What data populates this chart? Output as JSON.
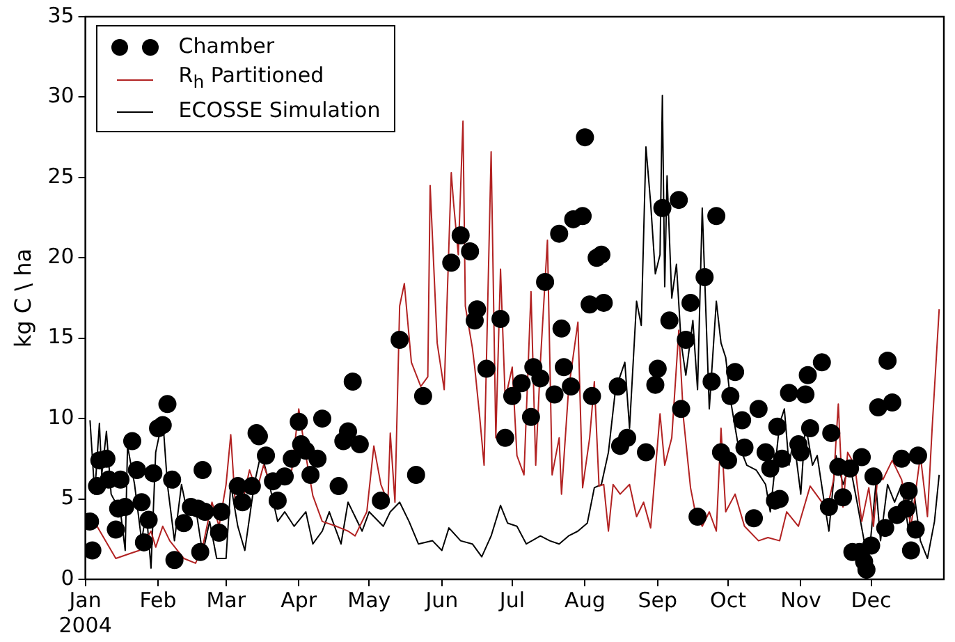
{
  "chart_data": {
    "type": "line",
    "ylabel": "kg C \\ ha",
    "xlim": [
      "2004-01-01",
      "2005-01-01"
    ],
    "ylim": [
      0,
      35
    ],
    "yticks": [
      0,
      5,
      10,
      15,
      20,
      25,
      30,
      35
    ],
    "xticks": [
      {
        "value": "2004-01-01",
        "label": "Jan\n2004"
      },
      {
        "value": "2004-02-01",
        "label": "Feb"
      },
      {
        "value": "2004-03-01",
        "label": "Mar"
      },
      {
        "value": "2004-04-01",
        "label": "Apr"
      },
      {
        "value": "2004-05-01",
        "label": "May"
      },
      {
        "value": "2004-06-01",
        "label": "Jun"
      },
      {
        "value": "2004-07-01",
        "label": "Jul"
      },
      {
        "value": "2004-08-01",
        "label": "Aug"
      },
      {
        "value": "2004-09-01",
        "label": "Sep"
      },
      {
        "value": "2004-10-01",
        "label": "Oct"
      },
      {
        "value": "2004-11-01",
        "label": "Nov"
      },
      {
        "value": "2004-12-01",
        "label": "Dec"
      }
    ],
    "legend": "top left",
    "series": [
      {
        "name": "Chamber",
        "type": "scatter",
        "marker": "circle",
        "color": "#000000",
        "x": [
          "2004-01-03",
          "2004-01-04",
          "2004-01-06",
          "2004-01-07",
          "2004-01-10",
          "2004-01-11",
          "2004-01-14",
          "2004-01-15",
          "2004-01-16",
          "2004-01-18",
          "2004-01-21",
          "2004-01-23",
          "2004-01-25",
          "2004-01-26",
          "2004-01-28",
          "2004-01-30",
          "2004-02-01",
          "2004-02-03",
          "2004-02-05",
          "2004-02-07",
          "2004-02-08",
          "2004-02-12",
          "2004-02-15",
          "2004-02-18",
          "2004-02-19",
          "2004-02-20",
          "2004-02-21",
          "2004-02-27",
          "2004-02-28",
          "2004-03-06",
          "2004-03-08",
          "2004-03-12",
          "2004-03-14",
          "2004-03-15",
          "2004-03-18",
          "2004-03-21",
          "2004-03-23",
          "2004-03-26",
          "2004-03-29",
          "2004-04-01",
          "2004-04-02",
          "2004-04-04",
          "2004-04-06",
          "2004-04-09",
          "2004-04-11",
          "2004-04-18",
          "2004-04-20",
          "2004-04-22",
          "2004-04-24",
          "2004-04-27",
          "2004-05-06",
          "2004-05-14",
          "2004-05-21",
          "2004-05-24",
          "2004-06-05",
          "2004-06-09",
          "2004-06-13",
          "2004-06-15",
          "2004-06-16",
          "2004-06-20",
          "2004-06-26",
          "2004-06-28",
          "2004-07-01",
          "2004-07-05",
          "2004-07-09",
          "2004-07-10",
          "2004-07-13",
          "2004-07-15",
          "2004-07-19",
          "2004-07-21",
          "2004-07-22",
          "2004-07-23",
          "2004-07-26",
          "2004-07-27",
          "2004-07-31",
          "2004-08-01",
          "2004-08-03",
          "2004-08-04",
          "2004-08-06",
          "2004-08-08",
          "2004-08-09",
          "2004-08-15",
          "2004-08-16",
          "2004-08-19",
          "2004-08-27",
          "2004-08-31",
          "2004-09-01",
          "2004-09-03",
          "2004-09-06",
          "2004-09-10",
          "2004-09-11",
          "2004-09-13",
          "2004-09-15",
          "2004-09-18",
          "2004-09-21",
          "2004-09-24",
          "2004-09-26",
          "2004-09-28",
          "2004-10-01",
          "2004-10-02",
          "2004-10-04",
          "2004-10-07",
          "2004-10-08",
          "2004-10-12",
          "2004-10-14",
          "2004-10-17",
          "2004-10-19",
          "2004-10-21",
          "2004-10-22",
          "2004-10-23",
          "2004-10-24",
          "2004-10-27",
          "2004-10-31",
          "2004-11-01",
          "2004-11-03",
          "2004-11-04",
          "2004-11-05",
          "2004-11-10",
          "2004-11-13",
          "2004-11-14",
          "2004-11-17",
          "2004-11-19",
          "2004-11-22",
          "2004-11-23",
          "2004-11-26",
          "2004-11-27",
          "2004-11-28",
          "2004-11-29",
          "2004-12-01",
          "2004-12-02",
          "2004-12-04",
          "2004-12-07",
          "2004-12-08",
          "2004-12-10",
          "2004-12-12",
          "2004-12-14",
          "2004-12-16",
          "2004-12-17",
          "2004-12-18",
          "2004-12-20",
          "2004-12-21"
        ],
        "values": [
          3.6,
          1.8,
          5.8,
          7.4,
          7.5,
          6.2,
          3.1,
          4.4,
          6.2,
          4.5,
          8.6,
          6.8,
          4.8,
          2.3,
          3.7,
          6.6,
          9.4,
          9.6,
          10.9,
          6.2,
          1.2,
          3.5,
          4.5,
          4.4,
          1.7,
          6.8,
          4.2,
          2.9,
          4.2,
          5.8,
          4.8,
          5.8,
          9.1,
          8.9,
          7.7,
          6.1,
          4.9,
          6.4,
          7.5,
          9.8,
          8.4,
          8.0,
          6.5,
          7.5,
          10.0,
          5.8,
          8.6,
          9.2,
          12.3,
          8.4,
          4.9,
          14.9,
          6.5,
          11.4,
          19.7,
          21.4,
          20.4,
          16.1,
          16.8,
          13.1,
          16.2,
          8.8,
          11.4,
          12.2,
          10.1,
          13.2,
          12.5,
          18.5,
          11.5,
          21.5,
          15.6,
          13.2,
          12.0,
          22.4,
          22.6,
          27.5,
          17.1,
          11.4,
          20.0,
          20.2,
          17.2,
          12.0,
          8.3,
          8.8,
          7.9,
          12.1,
          13.1,
          23.1,
          16.1,
          23.6,
          10.6,
          14.9,
          17.2,
          3.9,
          18.8,
          12.3,
          22.6,
          7.9,
          7.4,
          11.4,
          12.9,
          9.9,
          8.2,
          3.8,
          10.6,
          7.9,
          6.9,
          4.9,
          9.5,
          5.0,
          7.5,
          11.6,
          8.4,
          7.9,
          11.5,
          12.7,
          9.4,
          13.5,
          4.5,
          9.1,
          7.0,
          5.1,
          6.9,
          1.7,
          1.7,
          7.6,
          1.1,
          0.6,
          2.1,
          6.4,
          10.7,
          3.2,
          13.6,
          11.0,
          4.0,
          7.5,
          4.4,
          5.5,
          1.8,
          3.1,
          7.7
        ]
      },
      {
        "name": "R$_{h}$ Partitioned",
        "line_style": "solid",
        "color": "#b22222",
        "x": [
          "2004-01-02",
          "2004-01-06",
          "2004-01-14",
          "2004-01-20",
          "2004-01-24",
          "2004-01-29",
          "2004-01-31",
          "2004-02-03",
          "2004-02-06",
          "2004-02-12",
          "2004-02-17",
          "2004-02-20",
          "2004-02-24",
          "2004-02-27",
          "2004-03-01",
          "2004-03-03",
          "2004-03-05",
          "2004-03-08",
          "2004-03-11",
          "2004-03-14",
          "2004-03-17",
          "2004-03-20",
          "2004-03-24",
          "2004-03-29",
          "2004-04-01",
          "2004-04-04",
          "2004-04-07",
          "2004-04-11",
          "2004-04-17",
          "2004-04-22",
          "2004-04-25",
          "2004-04-30",
          "2004-05-03",
          "2004-05-06",
          "2004-05-09",
          "2004-05-10",
          "2004-05-12",
          "2004-05-14",
          "2004-05-16",
          "2004-05-19",
          "2004-05-23",
          "2004-05-26",
          "2004-05-27",
          "2004-05-30",
          "2004-06-02",
          "2004-06-05",
          "2004-06-06",
          "2004-06-08",
          "2004-06-10",
          "2004-06-11",
          "2004-06-14",
          "2004-06-15",
          "2004-06-17",
          "2004-06-19",
          "2004-06-22",
          "2004-06-24",
          "2004-06-26",
          "2004-06-28",
          "2004-07-01",
          "2004-07-03",
          "2004-07-06",
          "2004-07-09",
          "2004-07-11",
          "2004-07-13",
          "2004-07-16",
          "2004-07-18",
          "2004-07-21",
          "2004-07-22",
          "2004-07-25",
          "2004-07-29",
          "2004-07-31",
          "2004-08-03",
          "2004-08-05",
          "2004-08-07",
          "2004-08-09",
          "2004-08-11",
          "2004-08-13",
          "2004-08-16",
          "2004-08-20",
          "2004-08-23",
          "2004-08-26",
          "2004-08-29",
          "2004-09-02",
          "2004-09-04",
          "2004-09-07",
          "2004-09-10",
          "2004-09-12",
          "2004-09-15",
          "2004-09-17",
          "2004-09-20",
          "2004-09-23",
          "2004-09-26",
          "2004-09-28",
          "2004-09-30",
          "2004-10-04",
          "2004-10-08",
          "2004-10-14",
          "2004-10-18",
          "2004-10-23",
          "2004-10-26",
          "2004-10-31",
          "2004-11-05",
          "2004-11-10",
          "2004-11-12",
          "2004-11-15",
          "2004-11-17",
          "2004-11-19",
          "2004-11-21",
          "2004-11-24",
          "2004-11-27",
          "2004-11-30",
          "2004-12-02",
          "2004-12-04",
          "2004-12-06",
          "2004-12-10",
          "2004-12-14",
          "2004-12-18",
          "2004-12-22",
          "2004-12-25",
          "2004-12-27",
          "2004-12-30"
        ],
        "values": [
          4.0,
          3.3,
          1.3,
          1.6,
          1.8,
          3.0,
          2.0,
          3.3,
          2.4,
          1.3,
          1.0,
          2.0,
          4.8,
          3.3,
          5.9,
          9.0,
          4.5,
          4.8,
          6.8,
          5.5,
          7.1,
          5.9,
          6.2,
          6.8,
          10.6,
          7.7,
          5.2,
          3.6,
          3.3,
          3.0,
          2.7,
          4.2,
          8.3,
          5.9,
          4.8,
          9.1,
          4.8,
          17.0,
          18.4,
          13.5,
          12.0,
          12.6,
          24.5,
          14.7,
          11.8,
          25.3,
          23.4,
          20.2,
          28.5,
          17.0,
          14.4,
          13.2,
          10.3,
          7.1,
          26.6,
          8.8,
          19.3,
          11.2,
          13.2,
          7.7,
          6.5,
          17.9,
          7.1,
          13.5,
          21.1,
          6.5,
          8.8,
          5.3,
          11.8,
          16.0,
          5.7,
          8.8,
          12.3,
          5.8,
          5.9,
          3.0,
          5.9,
          5.3,
          5.9,
          3.9,
          4.8,
          3.2,
          10.3,
          7.1,
          8.8,
          15.5,
          10.0,
          5.7,
          4.2,
          3.3,
          4.2,
          3.0,
          9.4,
          4.2,
          5.3,
          3.3,
          2.4,
          2.6,
          2.4,
          4.2,
          3.3,
          5.8,
          4.8,
          4.2,
          6.2,
          10.9,
          4.5,
          7.9,
          7.1,
          3.6,
          5.7,
          3.3,
          6.8,
          6.2,
          7.4,
          6.2,
          3.3,
          7.7,
          3.9,
          9.4,
          16.8
        ]
      },
      {
        "name": "ECOSSE Simulation",
        "line_style": "solid",
        "color": "#000000",
        "x": [
          "2004-01-03",
          "2004-01-05",
          "2004-01-07",
          "2004-01-08",
          "2004-01-10",
          "2004-01-12",
          "2004-01-16",
          "2004-01-18",
          "2004-01-19",
          "2004-01-22",
          "2004-01-25",
          "2004-01-27",
          "2004-01-29",
          "2004-01-31",
          "2004-02-03",
          "2004-02-05",
          "2004-02-08",
          "2004-02-11",
          "2004-02-13",
          "2004-02-17",
          "2004-02-20",
          "2004-02-23",
          "2004-02-26",
          "2004-03-01",
          "2004-03-03",
          "2004-03-06",
          "2004-03-09",
          "2004-03-13",
          "2004-03-16",
          "2004-03-19",
          "2004-03-23",
          "2004-03-26",
          "2004-03-30",
          "2004-04-04",
          "2004-04-07",
          "2004-04-11",
          "2004-04-14",
          "2004-04-19",
          "2004-04-22",
          "2004-04-28",
          "2004-05-01",
          "2004-05-07",
          "2004-05-10",
          "2004-05-14",
          "2004-05-18",
          "2004-05-22",
          "2004-05-28",
          "2004-06-01",
          "2004-06-04",
          "2004-06-09",
          "2004-06-14",
          "2004-06-18",
          "2004-06-22",
          "2004-06-26",
          "2004-06-29",
          "2004-07-03",
          "2004-07-07",
          "2004-07-13",
          "2004-07-17",
          "2004-07-21",
          "2004-07-25",
          "2004-07-29",
          "2004-08-02",
          "2004-08-05",
          "2004-08-08",
          "2004-08-11",
          "2004-08-14",
          "2004-08-18",
          "2004-08-20",
          "2004-08-23",
          "2004-08-25",
          "2004-08-27",
          "2004-08-29",
          "2004-08-31",
          "2004-09-02",
          "2004-09-03",
          "2004-09-04",
          "2004-09-05",
          "2004-09-07",
          "2004-09-09",
          "2004-09-11",
          "2004-09-13",
          "2004-09-16",
          "2004-09-18",
          "2004-09-20",
          "2004-09-23",
          "2004-09-26",
          "2004-09-28",
          "2004-09-30",
          "2004-10-02",
          "2004-10-05",
          "2004-10-09",
          "2004-10-13",
          "2004-10-17",
          "2004-10-19",
          "2004-10-23",
          "2004-10-25",
          "2004-10-27",
          "2004-10-29",
          "2004-11-01",
          "2004-11-03",
          "2004-11-06",
          "2004-11-08",
          "2004-11-11",
          "2004-11-13",
          "2004-11-16",
          "2004-11-19",
          "2004-11-22",
          "2004-11-25",
          "2004-11-28",
          "2004-11-30",
          "2004-12-03",
          "2004-12-05",
          "2004-12-08",
          "2004-12-11",
          "2004-12-14",
          "2004-12-17",
          "2004-12-19",
          "2004-12-22",
          "2004-12-25",
          "2004-12-28",
          "2004-12-30"
        ],
        "values": [
          9.9,
          5.3,
          9.7,
          6.5,
          9.2,
          5.3,
          4.2,
          1.8,
          8.3,
          5.9,
          2.4,
          4.2,
          0.7,
          7.9,
          10.0,
          5.9,
          2.4,
          5.9,
          4.5,
          4.5,
          1.6,
          3.6,
          1.3,
          1.3,
          5.9,
          3.3,
          1.8,
          5.9,
          7.9,
          6.2,
          3.6,
          4.2,
          3.3,
          4.2,
          2.2,
          3.0,
          4.2,
          2.2,
          4.8,
          3.0,
          4.2,
          3.3,
          4.2,
          4.8,
          3.6,
          2.2,
          2.4,
          1.8,
          3.2,
          2.4,
          2.2,
          1.4,
          2.7,
          4.6,
          3.5,
          3.3,
          2.2,
          2.7,
          2.4,
          2.2,
          2.7,
          3.0,
          3.5,
          5.7,
          5.9,
          7.9,
          11.8,
          13.5,
          9.4,
          17.3,
          15.8,
          26.9,
          23.4,
          19.0,
          20.2,
          30.1,
          18.2,
          25.1,
          17.5,
          19.6,
          14.7,
          12.7,
          16.1,
          11.8,
          23.1,
          10.6,
          17.3,
          14.7,
          13.8,
          11.2,
          8.6,
          7.1,
          6.8,
          5.9,
          4.2,
          9.7,
          10.6,
          7.1,
          8.8,
          5.3,
          9.7,
          7.1,
          7.7,
          4.8,
          3.0,
          7.7,
          5.9,
          7.1,
          4.8,
          2.4,
          1.3,
          5.9,
          2.4,
          5.9,
          4.8,
          5.9,
          3.0,
          5.7,
          2.4,
          1.3,
          3.6,
          6.5
        ]
      }
    ]
  }
}
